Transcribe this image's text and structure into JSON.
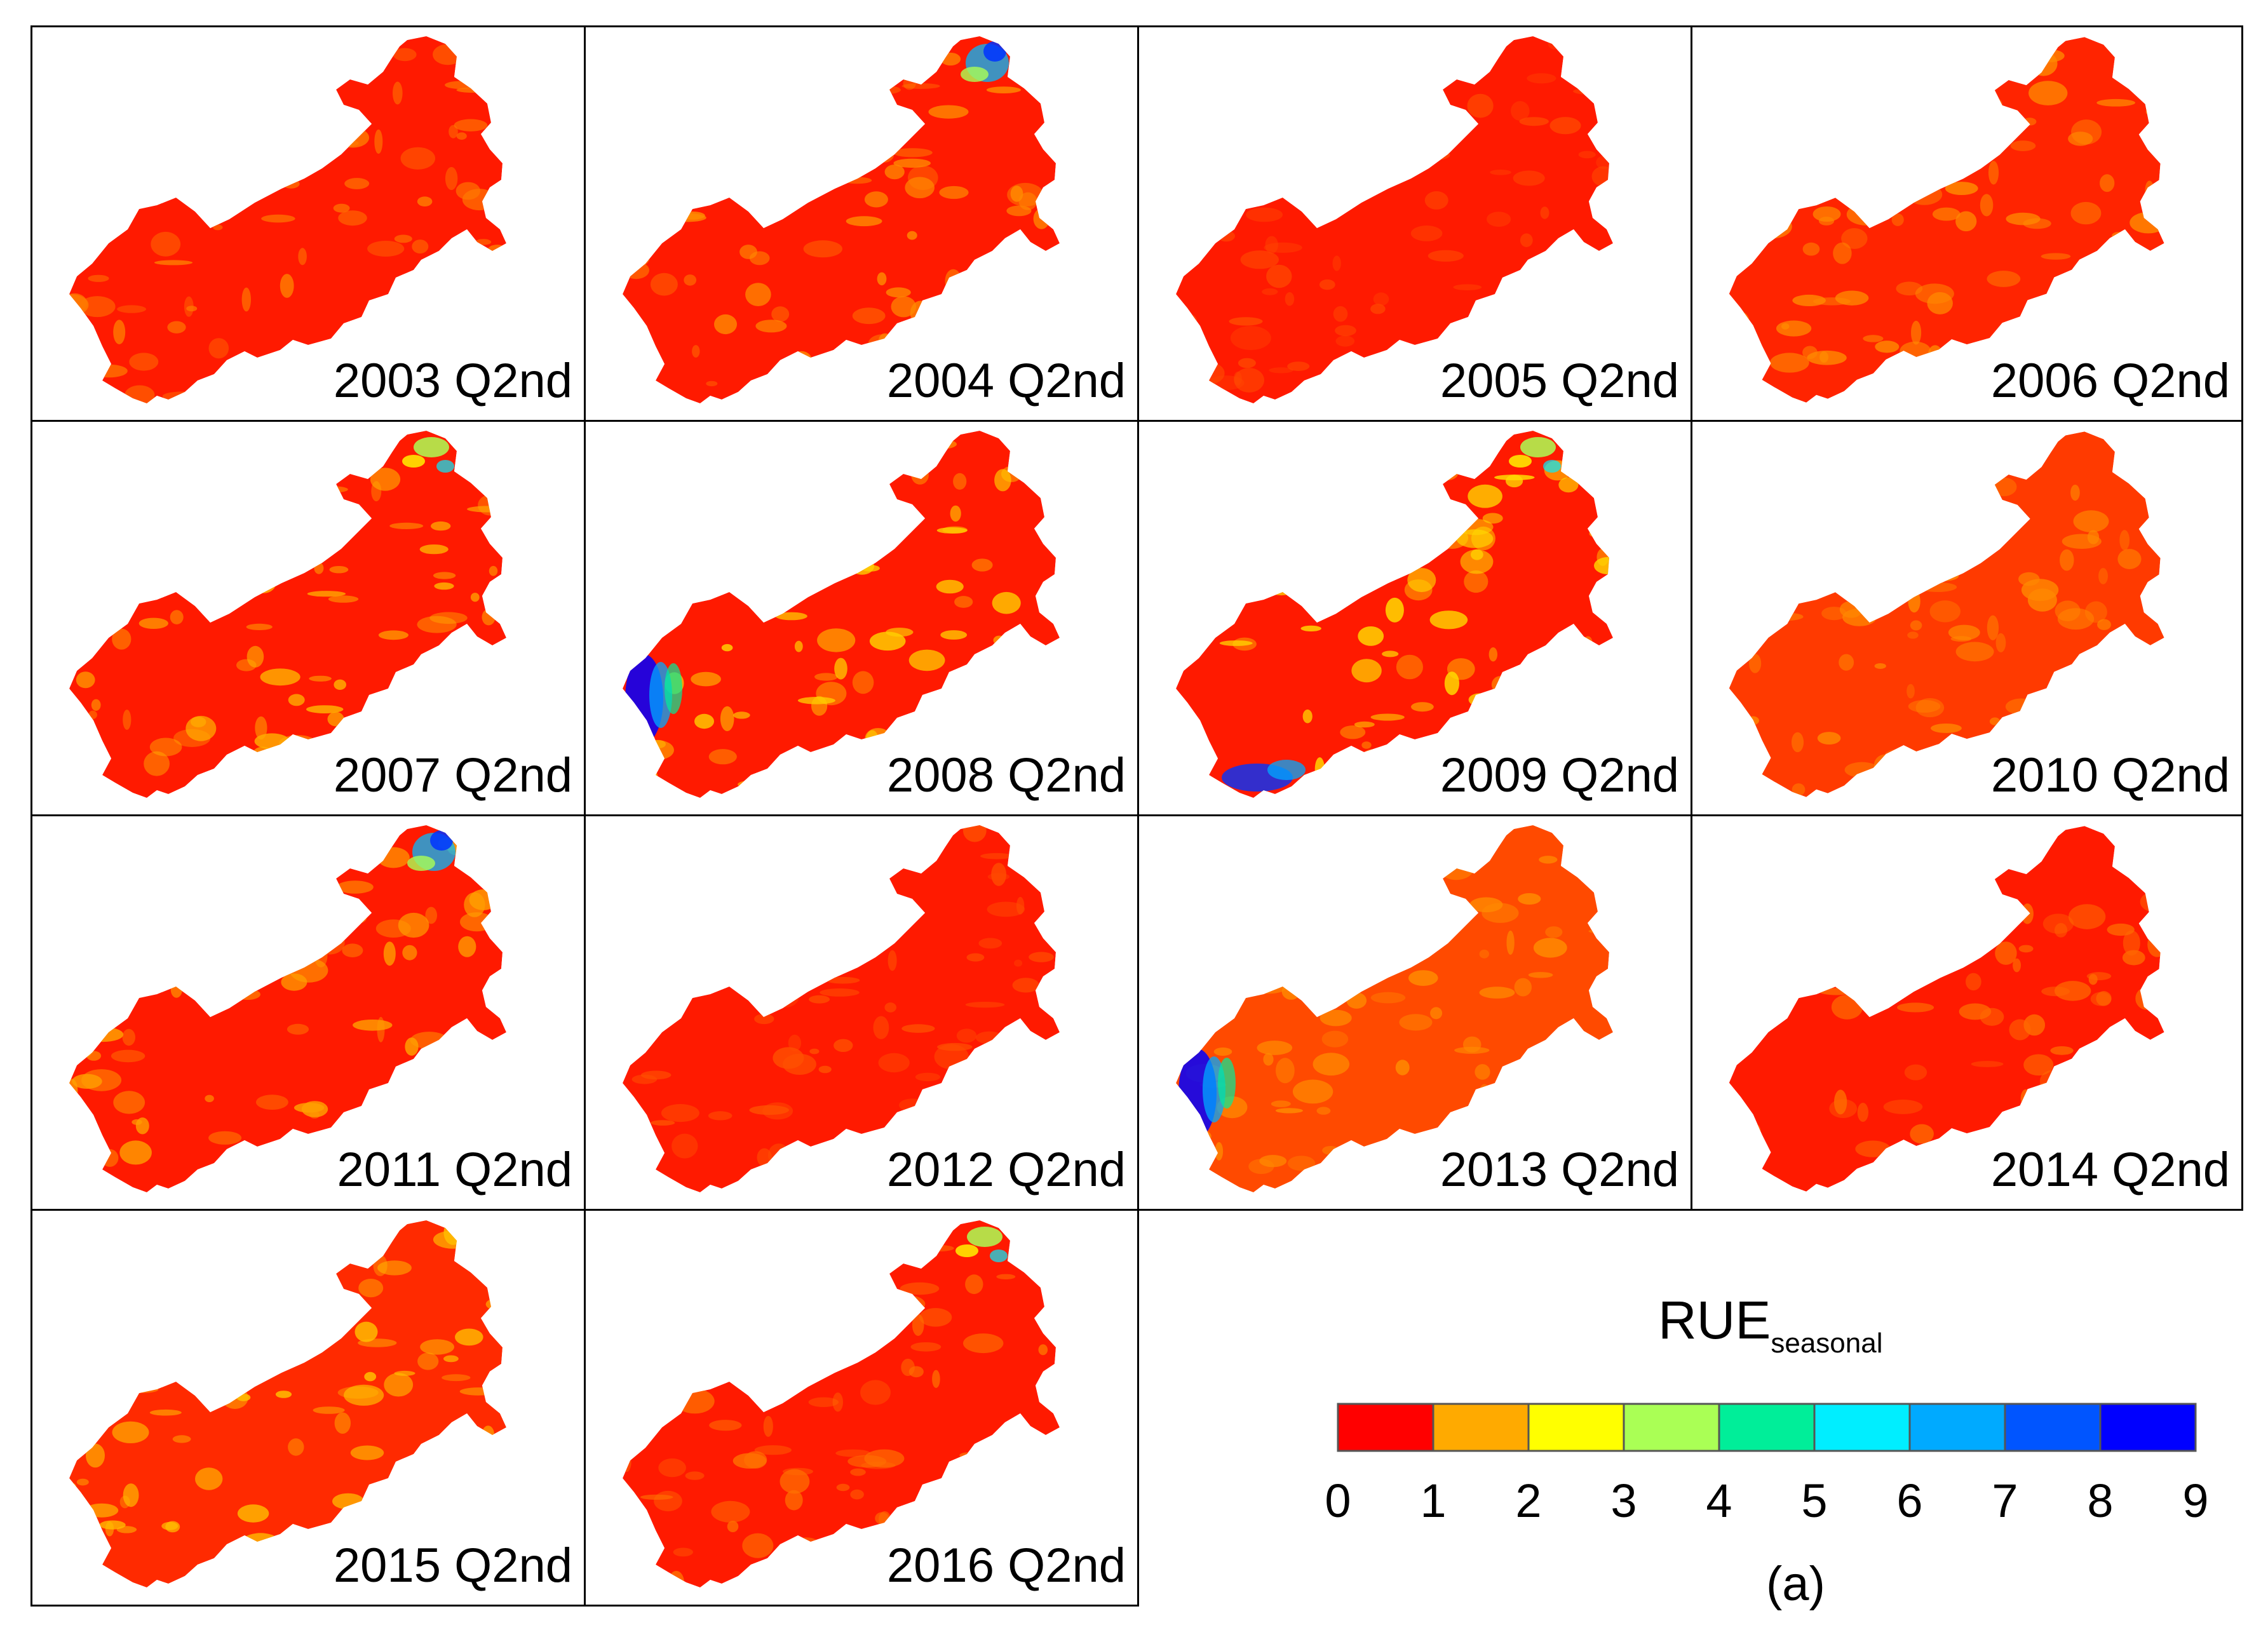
{
  "panels": [
    {
      "label": "2003 Q2nd",
      "base": "#ff1a00",
      "patch": "#ff7a00",
      "extra": []
    },
    {
      "label": "2004 Q2nd",
      "base": "#ff1a00",
      "patch": "#ff8c00",
      "extra": [
        "north-blue"
      ]
    },
    {
      "label": "2005 Q2nd",
      "base": "#ff1a00",
      "patch": "#ff4a00",
      "extra": []
    },
    {
      "label": "2006 Q2nd",
      "base": "#ff2400",
      "patch": "#ff8a00",
      "extra": []
    },
    {
      "label": "2007 Q2nd",
      "base": "#ff1a00",
      "patch": "#ffb000",
      "extra": [
        "north-green"
      ]
    },
    {
      "label": "2008 Q2nd",
      "base": "#ff1a00",
      "patch": "#ffd000",
      "extra": [
        "west-blue"
      ]
    },
    {
      "label": "2009 Q2nd",
      "base": "#ff1a00",
      "patch": "#ffdc00",
      "extra": [
        "north-green",
        "south-blue"
      ]
    },
    {
      "label": "2010 Q2nd",
      "base": "#ff3a00",
      "patch": "#ff8800",
      "extra": []
    },
    {
      "label": "2011 Q2nd",
      "base": "#ff1a00",
      "patch": "#ffa000",
      "extra": [
        "north-blue"
      ]
    },
    {
      "label": "2012 Q2nd",
      "base": "#ff1a00",
      "patch": "#ff5000",
      "extra": []
    },
    {
      "label": "2013 Q2nd",
      "base": "#ff4a00",
      "patch": "#ff8c00",
      "extra": [
        "west-blue"
      ]
    },
    {
      "label": "2014 Q2nd",
      "base": "#ff1a00",
      "patch": "#ff6a00",
      "extra": []
    },
    {
      "label": "2015 Q2nd",
      "base": "#ff2a00",
      "patch": "#ffc000",
      "extra": []
    },
    {
      "label": "2016 Q2nd",
      "base": "#ff1a00",
      "patch": "#ff7000",
      "extra": [
        "north-green"
      ]
    }
  ],
  "legend": {
    "title": "RUE",
    "subscript": "seasonal",
    "ticks": [
      "0",
      "1",
      "2",
      "3",
      "4",
      "5",
      "6",
      "7",
      "8",
      "9"
    ],
    "colors": [
      "#ff0000",
      "#ffaa00",
      "#ffff00",
      "#aaff55",
      "#00ee99",
      "#00eeff",
      "#00aaff",
      "#0055ff",
      "#0000ff"
    ],
    "figure_label": "(a)"
  }
}
